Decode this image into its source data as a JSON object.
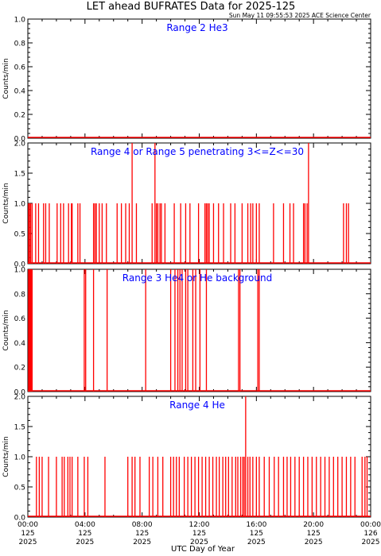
{
  "header": {
    "title": "LET ahead BUFRATES Data for 2025-125",
    "timestamp": "Sun May 11 09:55:53 2025 ACE Science Center"
  },
  "colors": {
    "data": "#ff0000",
    "panel_title": "#0000ff",
    "axis": "#000000"
  },
  "xaxis": {
    "label": "UTC Day of Year",
    "ticks": [
      {
        "l1": "00:00",
        "l2": "125",
        "l3": "2025"
      },
      {
        "l1": "04:00",
        "l2": "125",
        "l3": "2025"
      },
      {
        "l1": "08:00",
        "l2": "125",
        "l3": "2025"
      },
      {
        "l1": "12:00",
        "l2": "125",
        "l3": "2025"
      },
      {
        "l1": "16:00",
        "l2": "125",
        "l3": "2025"
      },
      {
        "l1": "20:00",
        "l2": "125",
        "l3": "2025"
      },
      {
        "l1": "00:00",
        "l2": "126",
        "l3": "2025"
      }
    ]
  },
  "chart_data": [
    {
      "type": "line",
      "title": "Range 2 He3",
      "ylabel": "Counts/min",
      "ylim": [
        0,
        1.0
      ],
      "yticks": [
        "0.0",
        "0.2",
        "0.4",
        "0.6",
        "0.8",
        "1.0"
      ],
      "xlim_hours": [
        0,
        24
      ],
      "spikes": []
    },
    {
      "type": "line",
      "title": "Range 4 or Range 5 penetrating 3<=Z<=30",
      "ylabel": "Counts/min",
      "ylim": [
        0,
        2.0
      ],
      "yticks": [
        "0.0",
        "0.5",
        "1.0",
        "1.5",
        "2.0"
      ],
      "xlim_hours": [
        0,
        24
      ],
      "spikes": [
        [
          0.05,
          1
        ],
        [
          0.12,
          1
        ],
        [
          0.2,
          1
        ],
        [
          0.3,
          1
        ],
        [
          0.55,
          1
        ],
        [
          0.75,
          1
        ],
        [
          1.1,
          1
        ],
        [
          1.25,
          1
        ],
        [
          1.5,
          1
        ],
        [
          2.05,
          1
        ],
        [
          2.3,
          1
        ],
        [
          2.5,
          1
        ],
        [
          2.85,
          1
        ],
        [
          3.05,
          1
        ],
        [
          3.1,
          1
        ],
        [
          3.5,
          1
        ],
        [
          3.65,
          1
        ],
        [
          4.6,
          1
        ],
        [
          4.7,
          1
        ],
        [
          4.8,
          1
        ],
        [
          5.0,
          1
        ],
        [
          5.2,
          1
        ],
        [
          5.5,
          1
        ],
        [
          6.25,
          1
        ],
        [
          6.55,
          1
        ],
        [
          6.85,
          1
        ],
        [
          7.1,
          1
        ],
        [
          7.3,
          2
        ],
        [
          7.6,
          1
        ],
        [
          8.7,
          1
        ],
        [
          8.9,
          2
        ],
        [
          9.0,
          1
        ],
        [
          9.1,
          1
        ],
        [
          9.25,
          1
        ],
        [
          9.35,
          1
        ],
        [
          9.6,
          1
        ],
        [
          10.25,
          1
        ],
        [
          10.7,
          1
        ],
        [
          11.05,
          1
        ],
        [
          11.35,
          1
        ],
        [
          11.95,
          1
        ],
        [
          12.4,
          1
        ],
        [
          12.5,
          1
        ],
        [
          12.6,
          1
        ],
        [
          12.7,
          1
        ],
        [
          13.0,
          1
        ],
        [
          13.35,
          1
        ],
        [
          13.7,
          1
        ],
        [
          14.2,
          1
        ],
        [
          14.5,
          1
        ],
        [
          15.0,
          1
        ],
        [
          15.4,
          1
        ],
        [
          15.6,
          1
        ],
        [
          15.75,
          1
        ],
        [
          16.0,
          1
        ],
        [
          16.2,
          1
        ],
        [
          17.2,
          1
        ],
        [
          17.9,
          1
        ],
        [
          18.35,
          1
        ],
        [
          18.6,
          1
        ],
        [
          19.3,
          1
        ],
        [
          19.4,
          1
        ],
        [
          19.55,
          1
        ],
        [
          19.65,
          2
        ],
        [
          22.1,
          1
        ],
        [
          22.3,
          1
        ],
        [
          22.45,
          1
        ]
      ]
    },
    {
      "type": "line",
      "title": "Range 3 He4 or He background",
      "ylabel": "Counts/min",
      "ylim": [
        0,
        1.0
      ],
      "yticks": [
        "0.0",
        "0.2",
        "0.4",
        "0.6",
        "0.8",
        "1.0"
      ],
      "xlim_hours": [
        0,
        24
      ],
      "spikes": [
        [
          0.05,
          1
        ],
        [
          0.1,
          1
        ],
        [
          0.15,
          1
        ],
        [
          0.2,
          1
        ],
        [
          0.25,
          1
        ],
        [
          0.3,
          1
        ],
        [
          3.95,
          1
        ],
        [
          4.05,
          1
        ],
        [
          4.6,
          1
        ],
        [
          5.55,
          1
        ],
        [
          8.25,
          1
        ],
        [
          10.0,
          1
        ],
        [
          10.3,
          1
        ],
        [
          10.5,
          1
        ],
        [
          10.65,
          1
        ],
        [
          10.8,
          1
        ],
        [
          11.05,
          1
        ],
        [
          11.2,
          1
        ],
        [
          11.55,
          1
        ],
        [
          11.75,
          1
        ],
        [
          12.05,
          1
        ],
        [
          12.5,
          1
        ],
        [
          14.75,
          1
        ],
        [
          14.85,
          1
        ],
        [
          16.1,
          1
        ],
        [
          16.2,
          1
        ]
      ]
    },
    {
      "type": "line",
      "title": "Range 4 He",
      "ylabel": "Counts/min",
      "ylim": [
        0,
        2.0
      ],
      "yticks": [
        "0.0",
        "0.5",
        "1.0",
        "1.5",
        "2.0"
      ],
      "xlim_hours": [
        0,
        24
      ],
      "spikes": [
        [
          0.6,
          1
        ],
        [
          0.8,
          1
        ],
        [
          1.0,
          1
        ],
        [
          1.45,
          1
        ],
        [
          2.0,
          1
        ],
        [
          2.4,
          1
        ],
        [
          2.55,
          1
        ],
        [
          2.8,
          1
        ],
        [
          2.95,
          1
        ],
        [
          3.1,
          1
        ],
        [
          3.5,
          1
        ],
        [
          3.95,
          1
        ],
        [
          4.2,
          1
        ],
        [
          5.4,
          1
        ],
        [
          7.0,
          1
        ],
        [
          7.3,
          1
        ],
        [
          7.5,
          1
        ],
        [
          7.85,
          1
        ],
        [
          8.5,
          1
        ],
        [
          8.75,
          1
        ],
        [
          9.1,
          1
        ],
        [
          9.45,
          1
        ],
        [
          10.0,
          1
        ],
        [
          10.2,
          1
        ],
        [
          10.4,
          1
        ],
        [
          10.6,
          1
        ],
        [
          10.95,
          1
        ],
        [
          11.2,
          1
        ],
        [
          11.45,
          1
        ],
        [
          11.7,
          1
        ],
        [
          11.95,
          1
        ],
        [
          12.2,
          1
        ],
        [
          12.45,
          1
        ],
        [
          12.7,
          1
        ],
        [
          12.95,
          1
        ],
        [
          13.2,
          1
        ],
        [
          13.4,
          1
        ],
        [
          13.65,
          1
        ],
        [
          13.85,
          1
        ],
        [
          14.05,
          1
        ],
        [
          14.3,
          1
        ],
        [
          14.55,
          1
        ],
        [
          14.7,
          1
        ],
        [
          14.9,
          1
        ],
        [
          15.05,
          1
        ],
        [
          15.15,
          1
        ],
        [
          15.25,
          2
        ],
        [
          15.4,
          1
        ],
        [
          15.55,
          1
        ],
        [
          15.75,
          1
        ],
        [
          16.0,
          1
        ],
        [
          16.2,
          1
        ],
        [
          16.55,
          1
        ],
        [
          16.9,
          1
        ],
        [
          17.25,
          1
        ],
        [
          17.55,
          1
        ],
        [
          17.9,
          1
        ],
        [
          18.15,
          1
        ],
        [
          18.4,
          1
        ],
        [
          18.7,
          1
        ],
        [
          19.0,
          1
        ],
        [
          19.3,
          1
        ],
        [
          19.6,
          1
        ],
        [
          19.9,
          1
        ],
        [
          20.2,
          1
        ],
        [
          20.5,
          1
        ],
        [
          20.8,
          1
        ],
        [
          21.1,
          1
        ],
        [
          21.4,
          1
        ],
        [
          21.7,
          1
        ],
        [
          22.0,
          1
        ],
        [
          22.3,
          1
        ],
        [
          22.6,
          1
        ],
        [
          22.9,
          1
        ],
        [
          23.4,
          1
        ],
        [
          23.6,
          1
        ],
        [
          23.75,
          1
        ]
      ]
    }
  ]
}
